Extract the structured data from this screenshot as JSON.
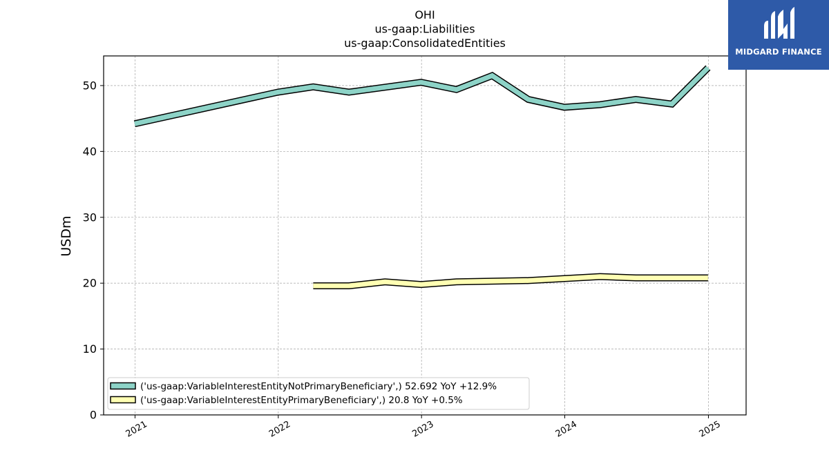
{
  "chart_data": {
    "type": "line",
    "title_lines": [
      "OHI",
      "us-gaap:Liabilities",
      "us-gaap:ConsolidatedEntities"
    ],
    "ylabel": "USDm",
    "xlabel": "",
    "ylim": [
      0,
      54.5
    ],
    "xlim": [
      "2020-10-13",
      "2025-04-07"
    ],
    "yticks": [
      0,
      10,
      20,
      30,
      40,
      50
    ],
    "xticks": [
      "2021",
      "2022",
      "2023",
      "2024",
      "2025"
    ],
    "grid": true,
    "legend_position": "lower-left",
    "series": [
      {
        "name": "('us-gaap:VariableInterestEntityNotPrimaryBeneficiary',) 52.692 YoY +12.9%",
        "color": "#8dd3c7",
        "points": [
          [
            "2020-12-31",
            44.2
          ],
          [
            "2021-12-31",
            49.0
          ],
          [
            "2022-03-31",
            49.8
          ],
          [
            "2022-06-30",
            49.0
          ],
          [
            "2022-12-31",
            50.5
          ],
          [
            "2023-03-31",
            49.4
          ],
          [
            "2023-06-30",
            51.5
          ],
          [
            "2023-09-30",
            47.9
          ],
          [
            "2023-12-31",
            46.7
          ],
          [
            "2024-03-31",
            47.1
          ],
          [
            "2024-06-30",
            47.9
          ],
          [
            "2024-09-30",
            47.2
          ],
          [
            "2024-12-31",
            52.7
          ]
        ]
      },
      {
        "name": "('us-gaap:VariableInterestEntityPrimaryBeneficiary',) 20.8 YoY +0.5%",
        "color": "#ffffb3",
        "points": [
          [
            "2022-03-31",
            19.6
          ],
          [
            "2022-06-30",
            19.6
          ],
          [
            "2022-09-30",
            20.2
          ],
          [
            "2022-12-31",
            19.8
          ],
          [
            "2023-03-31",
            20.2
          ],
          [
            "2023-09-30",
            20.4
          ],
          [
            "2023-12-31",
            20.7
          ],
          [
            "2024-03-31",
            21.0
          ],
          [
            "2024-06-30",
            20.8
          ],
          [
            "2024-12-31",
            20.8
          ]
        ]
      }
    ]
  },
  "logo": {
    "text": "MIDGARD FINANCE",
    "background": "#2e5aa8"
  }
}
